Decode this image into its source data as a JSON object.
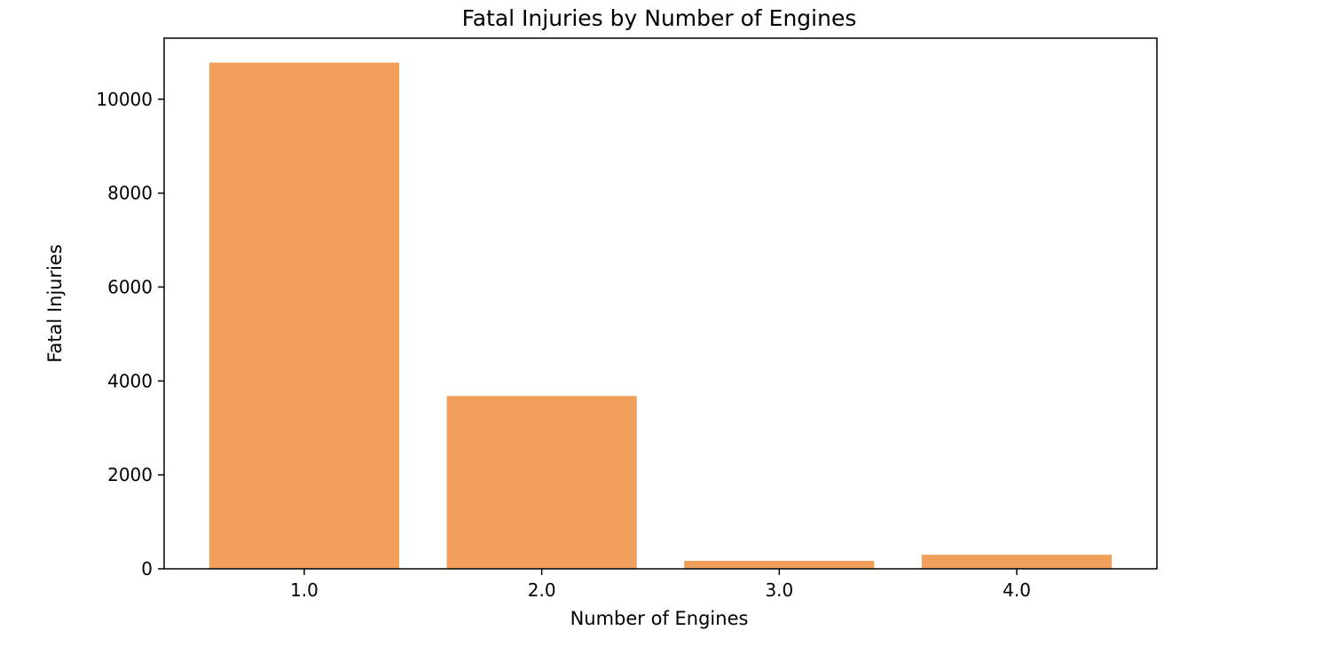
{
  "chart_data": {
    "type": "bar",
    "title": "Fatal Injuries by Number of Engines",
    "xlabel": "Number of Engines",
    "ylabel": "Fatal Injuries",
    "categories": [
      "1.0",
      "2.0",
      "3.0",
      "4.0"
    ],
    "values": [
      10780,
      3680,
      170,
      300
    ],
    "ylim": [
      0,
      11300
    ],
    "yticks": [
      0,
      2000,
      4000,
      6000,
      8000,
      10000
    ],
    "ytick_labels": [
      "0",
      "2000",
      "4000",
      "6000",
      "8000",
      "10000"
    ],
    "bar_color": "#f0a05a",
    "grid": false,
    "legend": "none"
  }
}
